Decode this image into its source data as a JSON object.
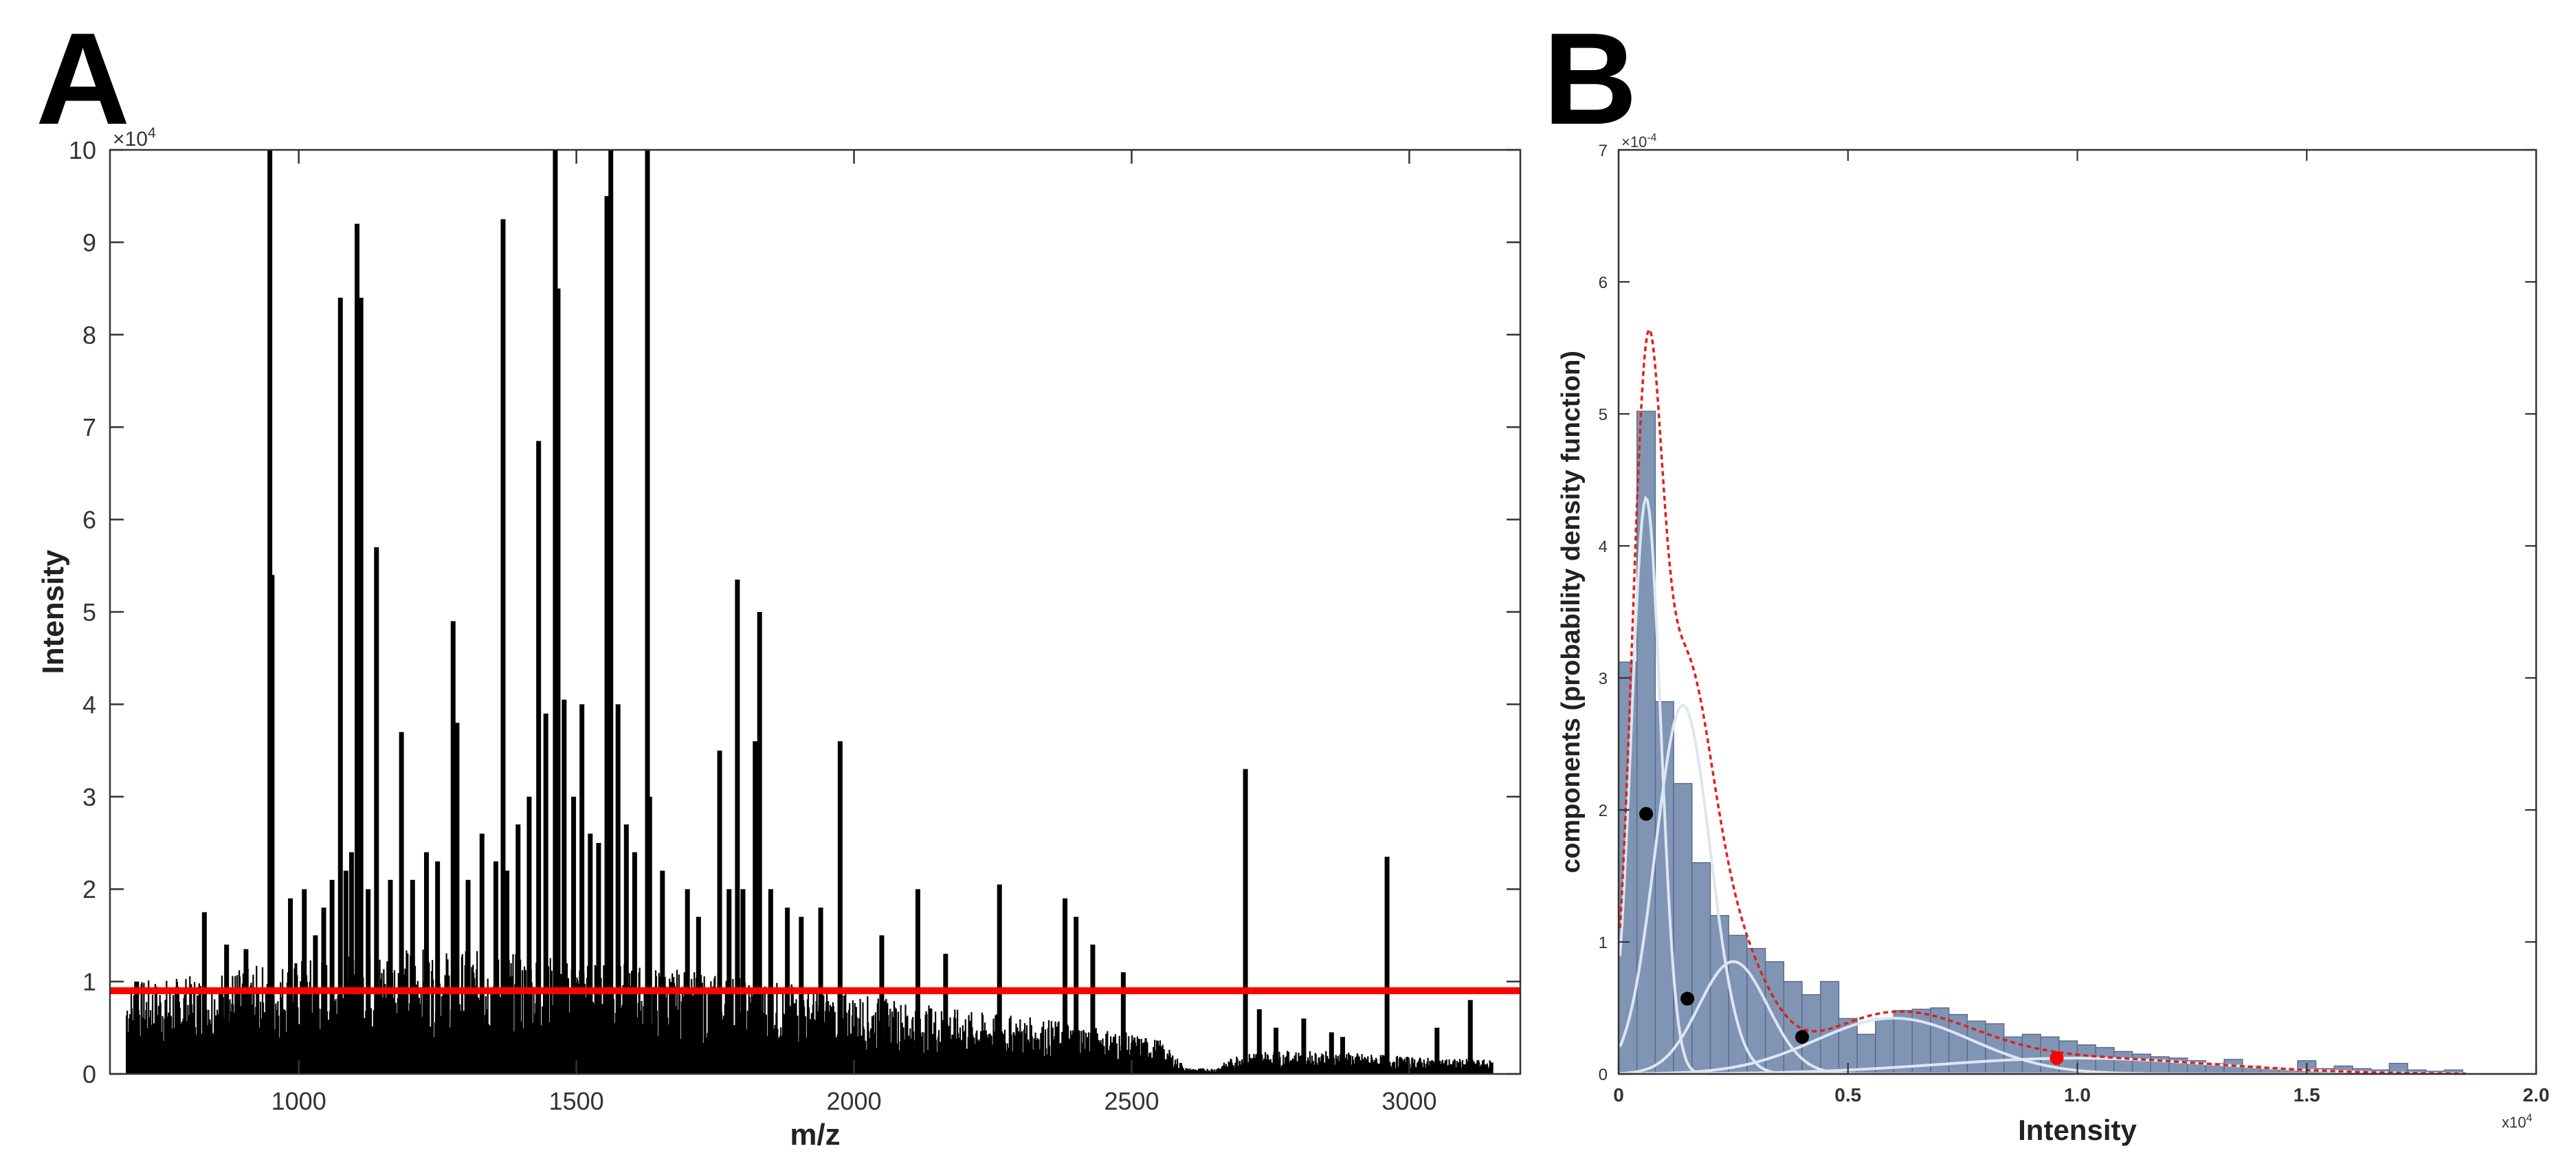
{
  "panels": {
    "a": {
      "letter": "A"
    },
    "b": {
      "letter": "B"
    }
  },
  "colors": {
    "spectrum": "#000000",
    "threshold": "#ff0000",
    "histogram_fill": "#8094b4",
    "histogram_edge": "#5a6d8c",
    "mixture_total": "#e0201a",
    "components": "#dde6f2",
    "marker": "#000000",
    "marker_highlight": "#ff0000"
  },
  "chart_data": [
    {
      "type": "line",
      "panel": "A",
      "title": "",
      "xlabel": "m/z",
      "ylabel": "Intensity",
      "y_scale_label": "x 10^4",
      "xlim": [
        660,
        3200
      ],
      "ylim": [
        0,
        10
      ],
      "xticks": [
        1000,
        1500,
        2000,
        2500,
        3000
      ],
      "yticks": [
        0,
        1,
        2,
        3,
        4,
        5,
        6,
        7,
        8,
        9,
        10
      ],
      "threshold": {
        "y": 0.9
      },
      "noise_band": [
        [
          690,
          0.8
        ],
        [
          800,
          0.85
        ],
        [
          1000,
          1.0
        ],
        [
          1200,
          1.1
        ],
        [
          1400,
          1.05
        ],
        [
          1600,
          0.95
        ],
        [
          1800,
          0.85
        ],
        [
          2000,
          0.7
        ],
        [
          2200,
          0.55
        ],
        [
          2400,
          0.45
        ],
        [
          2550,
          0.3
        ],
        [
          2600,
          0.05
        ],
        [
          2650,
          0.05
        ],
        [
          2700,
          0.2
        ],
        [
          2850,
          0.2
        ],
        [
          3000,
          0.15
        ],
        [
          3150,
          0.12
        ]
      ],
      "peaks": {
        "mz": [
          708,
          830,
          870,
          905,
          948,
          952,
          985,
          1010,
          1030,
          1045,
          1060,
          1075,
          1085,
          1095,
          1105,
          1112,
          1125,
          1140,
          1165,
          1185,
          1205,
          1230,
          1250,
          1278,
          1285,
          1305,
          1330,
          1355,
          1368,
          1375,
          1395,
          1415,
          1432,
          1445,
          1462,
          1467,
          1478,
          1495,
          1510,
          1525,
          1540,
          1555,
          1562,
          1575,
          1590,
          1605,
          1628,
          1632,
          1655,
          1700,
          1720,
          1758,
          1775,
          1790,
          1800,
          1822,
          1830,
          1850,
          1880,
          1905,
          1940,
          1975,
          2050,
          2115,
          2165,
          2262,
          2380,
          2400,
          2430,
          2485,
          2705,
          2730,
          2760,
          2810,
          2860,
          2880,
          2960,
          3050,
          3110
        ],
        "intensity": [
          1.0,
          1.75,
          1.4,
          1.35,
          10.0,
          5.4,
          1.9,
          2.0,
          1.5,
          1.8,
          2.1,
          8.4,
          2.2,
          2.4,
          9.2,
          8.4,
          2.0,
          5.7,
          2.1,
          3.7,
          2.1,
          2.4,
          2.3,
          4.9,
          3.8,
          2.1,
          2.6,
          2.3,
          9.25,
          2.2,
          2.7,
          3.0,
          6.85,
          3.9,
          10.0,
          8.5,
          4.05,
          3.0,
          4.0,
          2.6,
          2.5,
          9.5,
          10.0,
          4.0,
          2.7,
          2.4,
          10.0,
          3.0,
          2.2,
          2.0,
          1.7,
          3.5,
          2.0,
          5.35,
          2.0,
          3.6,
          5.0,
          2.0,
          1.8,
          1.7,
          1.8,
          3.6,
          1.5,
          2.0,
          1.3,
          2.05,
          1.9,
          1.7,
          1.4,
          1.1,
          3.3,
          0.7,
          0.5,
          0.6,
          0.45,
          0.4,
          2.35,
          0.5,
          0.8
        ]
      }
    },
    {
      "type": "bar",
      "panel": "B",
      "title": "",
      "xlabel": "Intensity",
      "ylabel": "components (probability density function)",
      "x_scale_label": "x10^4",
      "y_scale_label": "x10^-4",
      "xlim": [
        0,
        2.0
      ],
      "ylim": [
        0,
        7
      ],
      "xticks": [
        0,
        0.5,
        1.0,
        1.5,
        2.0
      ],
      "xtick_labels": [
        "0",
        "0.5",
        "1.0",
        "1.5",
        "2.0"
      ],
      "yticks": [
        0,
        1,
        2,
        3,
        4,
        5,
        6,
        7
      ],
      "histogram": {
        "bin_width": 0.04,
        "bin_start": 0,
        "values": [
          3.12,
          5.02,
          2.82,
          2.2,
          1.6,
          1.2,
          1.05,
          0.95,
          0.85,
          0.7,
          0.6,
          0.7,
          0.42,
          0.3,
          0.42,
          0.48,
          0.49,
          0.5,
          0.45,
          0.4,
          0.38,
          0.28,
          0.3,
          0.28,
          0.25,
          0.22,
          0.2,
          0.17,
          0.15,
          0.13,
          0.12,
          0.1,
          0.08,
          0.11,
          0.06,
          0.05,
          0.04,
          0.1,
          0.04,
          0.06,
          0.04,
          0.03,
          0.08,
          0.03,
          0.02,
          0.03
        ]
      },
      "components": [
        {
          "weight": 0.35,
          "mean": 0.06,
          "sd": 0.032
        },
        {
          "weight": 0.42,
          "mean": 0.14,
          "sd": 0.06
        },
        {
          "weight": 0.16,
          "mean": 0.25,
          "sd": 0.075
        },
        {
          "weight": 0.18,
          "mean": 0.6,
          "sd": 0.17
        },
        {
          "weight": 0.09,
          "mean": 1.0,
          "sd": 0.3
        }
      ],
      "markers": [
        {
          "x": 0.06,
          "y": 1.97,
          "highlight": false
        },
        {
          "x": 0.15,
          "y": 0.57,
          "highlight": false
        },
        {
          "x": 0.4,
          "y": 0.28,
          "highlight": false
        },
        {
          "x": 0.955,
          "y": 0.12,
          "highlight": true
        }
      ]
    }
  ]
}
